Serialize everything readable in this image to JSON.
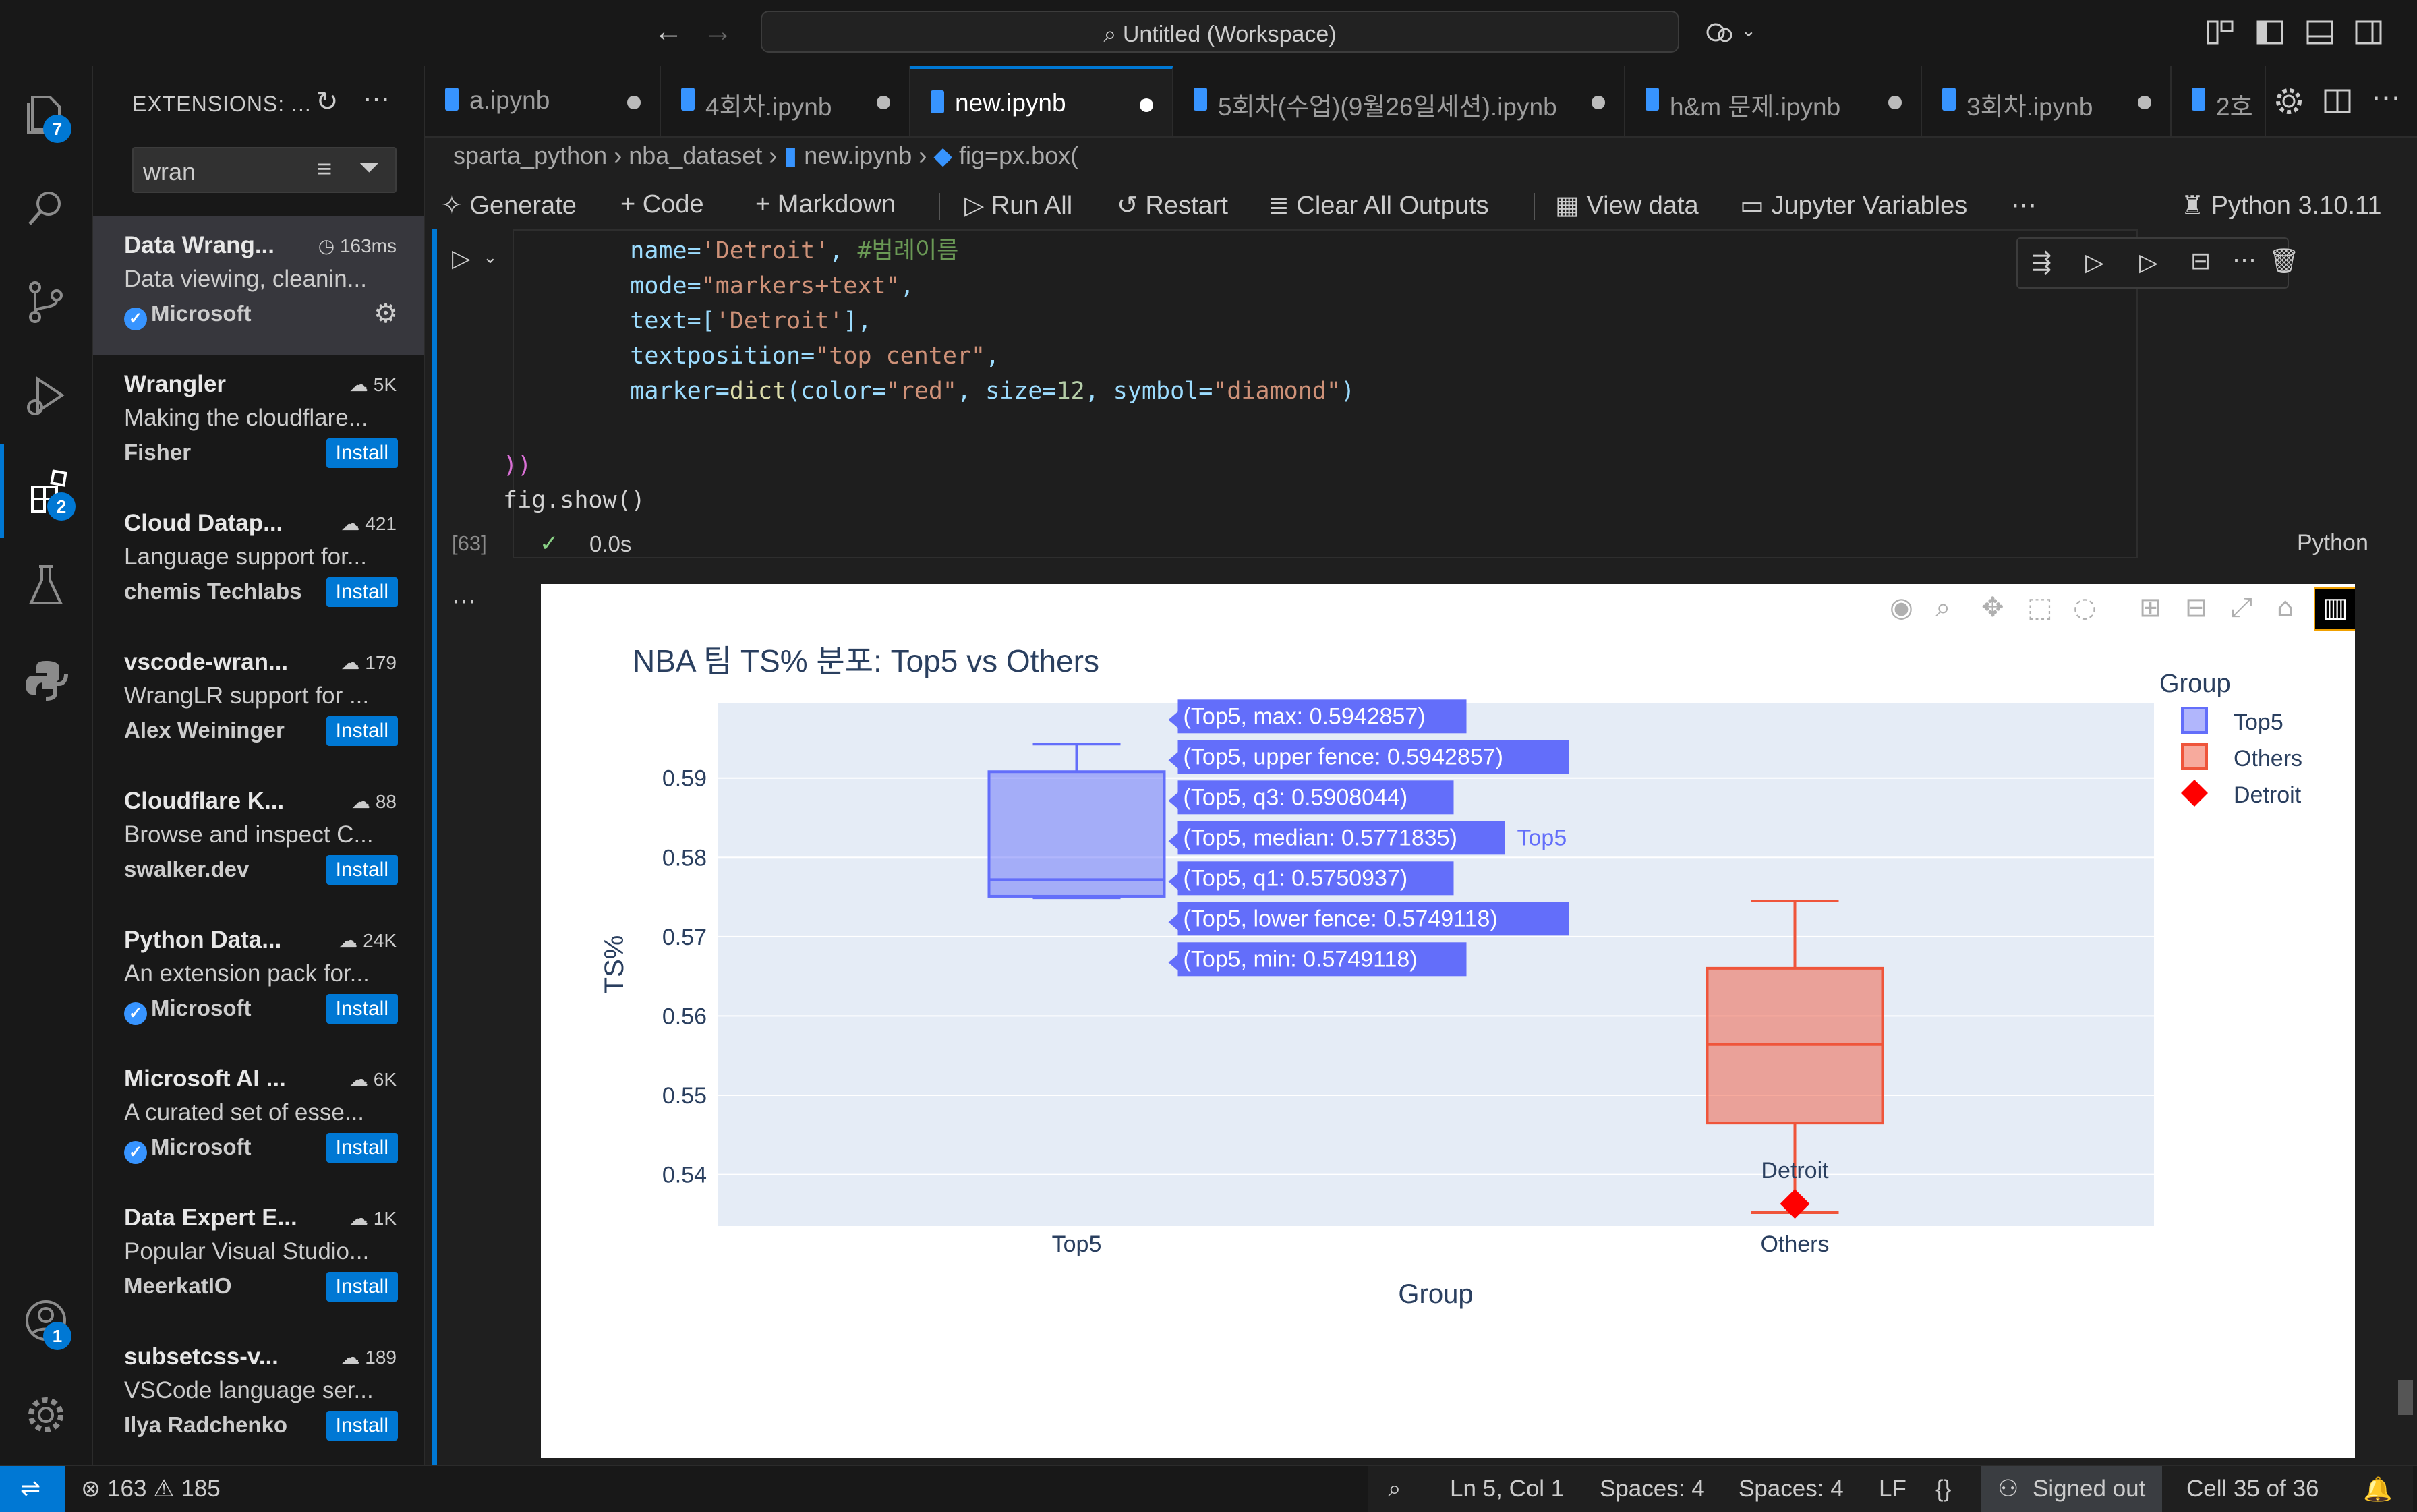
{
  "titlebar": {
    "workspace_title": "Untitled (Workspace)"
  },
  "activitybar": {
    "explorer_badge": "7",
    "extensions_badge": "2",
    "accounts_badge": "1"
  },
  "sidebar": {
    "title": "EXTENSIONS: ...",
    "search_value": "wran",
    "extensions": [
      {
        "name": "Data Wrang...",
        "count": "163ms",
        "desc": "Data viewing, cleanin...",
        "publisher": "Microsoft",
        "verified": true,
        "action": ""
      },
      {
        "name": "Wrangler",
        "count": "5K",
        "desc": "Making the cloudflare...",
        "publisher": "Fisher",
        "verified": false,
        "action": "Install"
      },
      {
        "name": "Cloud Datap...",
        "count": "421",
        "desc": "Language support for...",
        "publisher": "chemis Techlabs",
        "verified": false,
        "action": "Install"
      },
      {
        "name": "vscode-wran...",
        "count": "179",
        "desc": "WrangLR support for ...",
        "publisher": "Alex Weininger",
        "verified": false,
        "action": "Install"
      },
      {
        "name": "Cloudflare K...",
        "count": "88",
        "desc": "Browse and inspect C...",
        "publisher": "swalker.dev",
        "verified": false,
        "action": "Install"
      },
      {
        "name": "Python Data...",
        "count": "24K",
        "desc": "An extension pack for...",
        "publisher": "Microsoft",
        "verified": true,
        "action": "Install"
      },
      {
        "name": "Microsoft AI ...",
        "count": "6K",
        "desc": "A curated set of esse...",
        "publisher": "Microsoft",
        "verified": true,
        "action": "Install"
      },
      {
        "name": "Data Expert E...",
        "count": "1K",
        "desc": "Popular Visual Studio...",
        "publisher": "MeerkatIO",
        "verified": false,
        "action": "Install"
      },
      {
        "name": "subsetcss-v...",
        "count": "189",
        "desc": "VSCode language ser...",
        "publisher": "Ilya Radchenko",
        "verified": false,
        "action": "Install"
      }
    ]
  },
  "tabs": [
    {
      "label": "a.ipynb",
      "active": false
    },
    {
      "label": "4회차.ipynb",
      "active": false
    },
    {
      "label": "new.ipynb",
      "active": true
    },
    {
      "label": "5회차(수업)(9월26일세션).ipynb",
      "active": false
    },
    {
      "label": "h&m 문제.ipynb",
      "active": false
    },
    {
      "label": "3회차.ipynb",
      "active": false
    },
    {
      "label": "2호",
      "active": false
    }
  ],
  "breadcrumb": {
    "items": [
      "sparta_python",
      "nba_dataset",
      "new.ipynb",
      "fig=px.box("
    ]
  },
  "toolbar": {
    "generate": "Generate",
    "code": "Code",
    "markdown": "Markdown",
    "run_all": "Run All",
    "restart": "Restart",
    "clear_outputs": "Clear All Outputs",
    "view_data": "View data",
    "jupyter_variables": "Jupyter Variables",
    "kernel": "Python 3.10.11"
  },
  "cell": {
    "exec_count": "[63]",
    "duration": "0.0s",
    "language": "Python"
  },
  "code_lines": [
    [
      "    name=",
      "'Detroit'",
      ", ",
      "#범례이름"
    ],
    [
      "    mode=",
      "\"markers+text\"",
      ","
    ],
    [
      "    text=[",
      "'Detroit'",
      "],"
    ],
    [
      "    textposition=",
      "\"top center\"",
      ","
    ],
    [
      "    marker=",
      "dict",
      "(color=",
      "\"red\"",
      ", size=",
      "12",
      ", symbol=",
      "\"diamond\"",
      ")"
    ]
  ],
  "code_tail": [
    "))",
    "fig.show()"
  ],
  "chart_data": {
    "type": "box",
    "title": "NBA 팀 TS% 분포: Top5 vs Others",
    "xlabel": "Group",
    "ylabel": "TS%",
    "ylim": [
      0.5335,
      0.5995
    ],
    "yticks": [
      "0.54",
      "0.55",
      "0.56",
      "0.57",
      "0.58",
      "0.59"
    ],
    "categories": [
      "Top5",
      "Others"
    ],
    "boxes": [
      {
        "name": "Top5",
        "min": 0.5749118,
        "q1": 0.5750937,
        "median": 0.5771835,
        "q3": 0.5908044,
        "max": 0.5942857,
        "color": "#636efa"
      },
      {
        "name": "Others",
        "min": 0.5352,
        "q1": 0.5465,
        "median": 0.5564,
        "q3": 0.566,
        "max": 0.5745,
        "color": "#ef553b"
      }
    ],
    "points": [
      {
        "name": "Detroit",
        "x": "Others",
        "y": 0.5363,
        "color": "#ff0000",
        "label": "Detroit"
      }
    ],
    "legend": {
      "title": "Group",
      "position": "top-right",
      "items": [
        {
          "label": "Top5",
          "color": "#636efa",
          "symbol": "square"
        },
        {
          "label": "Others",
          "color": "#ef553b",
          "symbol": "square"
        },
        {
          "label": "Detroit",
          "color": "#ff0000",
          "symbol": "diamond"
        }
      ]
    },
    "hover_labels": [
      "(Top5, max: 0.5942857)",
      "(Top5, upper fence: 0.5942857)",
      "(Top5, q3: 0.5908044)",
      "(Top5, median: 0.5771835)",
      "(Top5, q1: 0.5750937)",
      "(Top5, lower fence: 0.5749118)",
      "(Top5, min: 0.5749118)"
    ],
    "hover_series_name": "Top5",
    "plot_bg": "#e5ecf6"
  },
  "statusbar": {
    "errors": "163",
    "warnings": "185",
    "position": "Ln 5, Col 1",
    "spaces1": "Spaces: 4",
    "spaces2": "Spaces: 4",
    "eol": "LF",
    "signed_out": "Signed out",
    "cell_info": "Cell 35 of 36"
  },
  "colors": {
    "accent": "#0078d4",
    "top5": "#636efa",
    "others": "#ef553b",
    "detroit": "#ff0000"
  }
}
